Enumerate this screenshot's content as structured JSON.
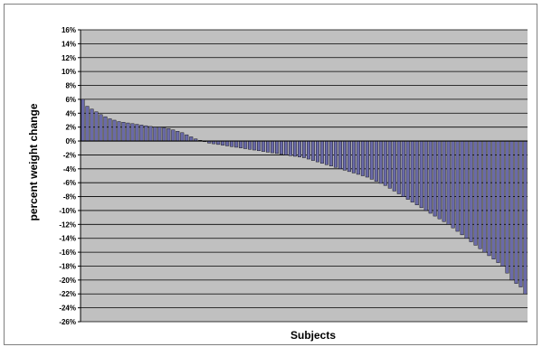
{
  "chart_data": {
    "type": "bar",
    "title": "",
    "xlabel": "Subjects",
    "ylabel": "percent weight change",
    "ylim": [
      -26,
      16
    ],
    "ytick_step": 2,
    "ytick_suffix": "%",
    "grid": true,
    "legend": "none",
    "colors": {
      "plot_background": "#c0c0c0",
      "bar_fill": "#6a6aa8",
      "bar_edge": "#000000",
      "gridline": "#000000"
    },
    "values": [
      6.0,
      5.0,
      4.6,
      4.2,
      3.8,
      3.5,
      3.2,
      3.0,
      2.8,
      2.7,
      2.6,
      2.5,
      2.4,
      2.3,
      2.2,
      2.1,
      2.0,
      2.0,
      1.9,
      1.8,
      1.6,
      1.4,
      1.2,
      0.9,
      0.6,
      0.3,
      0.1,
      -0.1,
      -0.3,
      -0.4,
      -0.5,
      -0.6,
      -0.7,
      -0.8,
      -0.9,
      -1.0,
      -1.1,
      -1.2,
      -1.3,
      -1.4,
      -1.5,
      -1.6,
      -1.7,
      -1.8,
      -1.9,
      -2.0,
      -2.1,
      -2.2,
      -2.3,
      -2.4,
      -2.6,
      -2.8,
      -3.0,
      -3.2,
      -3.4,
      -3.6,
      -3.8,
      -4.0,
      -4.2,
      -4.4,
      -4.6,
      -4.8,
      -5.0,
      -5.2,
      -5.5,
      -5.8,
      -6.1,
      -6.4,
      -6.8,
      -7.2,
      -7.6,
      -8.0,
      -8.4,
      -8.8,
      -9.2,
      -9.6,
      -10.0,
      -10.4,
      -10.8,
      -11.2,
      -11.6,
      -12.0,
      -12.5,
      -13.0,
      -13.5,
      -14.0,
      -14.5,
      -15.0,
      -15.5,
      -16.0,
      -16.5,
      -17.0,
      -17.5,
      -18.0,
      -19.0,
      -20.0,
      -20.5,
      -21.0,
      -22.0
    ]
  }
}
